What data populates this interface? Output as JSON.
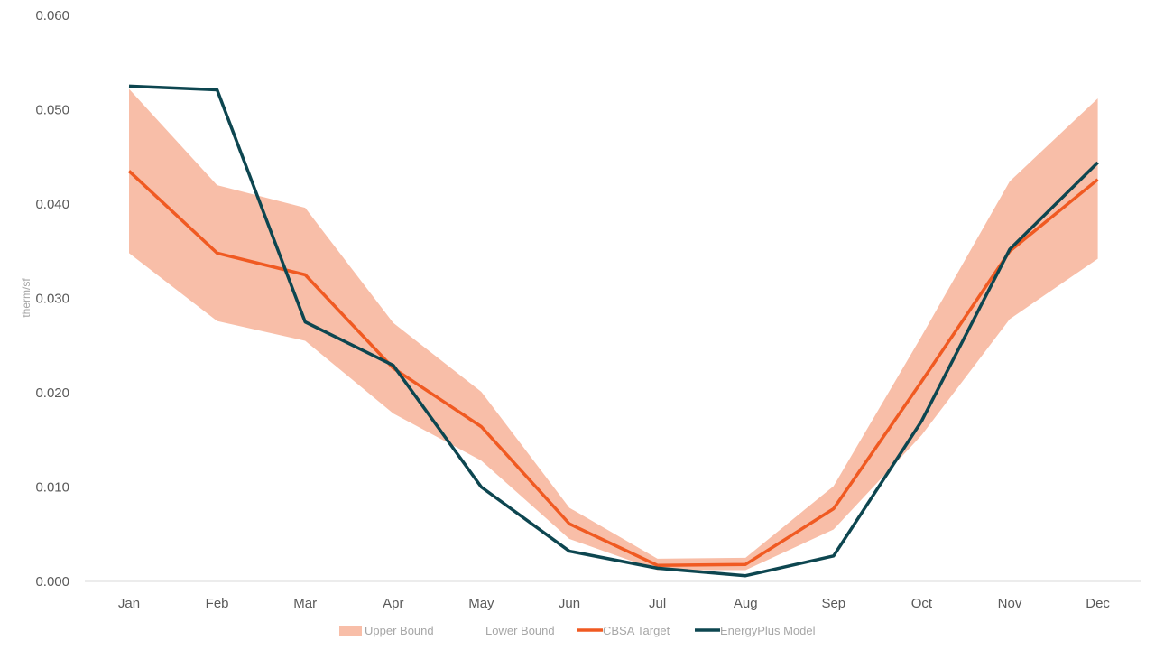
{
  "chart_data": {
    "type": "line",
    "categories": [
      "Jan",
      "Feb",
      "Mar",
      "Apr",
      "May",
      "Jun",
      "Jul",
      "Aug",
      "Sep",
      "Oct",
      "Nov",
      "Dec"
    ],
    "ylabel": "therm/sf",
    "ylim": [
      0,
      0.06
    ],
    "yticks": [
      "0.000",
      "0.010",
      "0.020",
      "0.030",
      "0.040",
      "0.050",
      "0.060"
    ],
    "series": [
      {
        "name": "Upper Bound",
        "kind": "band-upper",
        "color": "#f8bea8",
        "values": [
          0.0522,
          0.042,
          0.0396,
          0.0274,
          0.0201,
          0.0078,
          0.0024,
          0.0025,
          0.0101,
          0.026,
          0.0424,
          0.0512
        ]
      },
      {
        "name": "Lower Bound",
        "kind": "band-lower",
        "color": "#ffffff",
        "values": [
          0.0348,
          0.0276,
          0.0255,
          0.0178,
          0.0128,
          0.0045,
          0.0012,
          0.0012,
          0.0055,
          0.0155,
          0.0278,
          0.0342
        ]
      },
      {
        "name": "CBSA Target",
        "kind": "line",
        "color": "#f05a22",
        "values": [
          0.0435,
          0.0348,
          0.0325,
          0.0226,
          0.0164,
          0.0061,
          0.0017,
          0.0018,
          0.0077,
          0.0212,
          0.035,
          0.0426
        ]
      },
      {
        "name": "EnergyPlus Model",
        "kind": "line",
        "color": "#0d4650",
        "values": [
          0.0525,
          0.0521,
          0.0275,
          0.0229,
          0.01,
          0.0032,
          0.0014,
          0.0006,
          0.0027,
          0.017,
          0.0352,
          0.0444
        ]
      }
    ],
    "grid": false,
    "legend_position": "bottom"
  }
}
